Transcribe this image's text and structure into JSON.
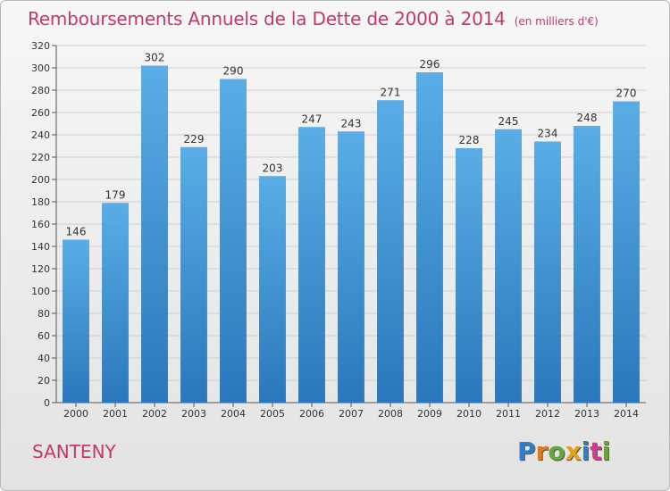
{
  "header": {
    "title": "Remboursements Annuels de la Dette de 2000 à 2014",
    "subtitle": "(en milliers d'€)"
  },
  "footer": {
    "commune": "SANTENY",
    "logo_text": "Proxiti"
  },
  "colors": {
    "title": "#c13b63",
    "bar_top": "#5aade6",
    "bar_bottom": "#2a78bb",
    "logo_letters": [
      "#2f7fc8",
      "#e07a1f",
      "#6aa53a",
      "#e2a21f",
      "#2f7fc8",
      "#d23a8a",
      "#6aa53a"
    ]
  },
  "chart_data": {
    "type": "bar",
    "title": "Remboursements Annuels de la Dette de 2000 à 2014",
    "subtitle": "(en milliers d'€)",
    "categories": [
      "2000",
      "2001",
      "2002",
      "2003",
      "2004",
      "2005",
      "2006",
      "2007",
      "2008",
      "2009",
      "2010",
      "2011",
      "2012",
      "2013",
      "2014"
    ],
    "values": [
      146,
      179,
      302,
      229,
      290,
      203,
      247,
      243,
      271,
      296,
      228,
      245,
      234,
      248,
      270
    ],
    "ylim": [
      0,
      320
    ],
    "ytick_step": 20,
    "grid": true
  }
}
